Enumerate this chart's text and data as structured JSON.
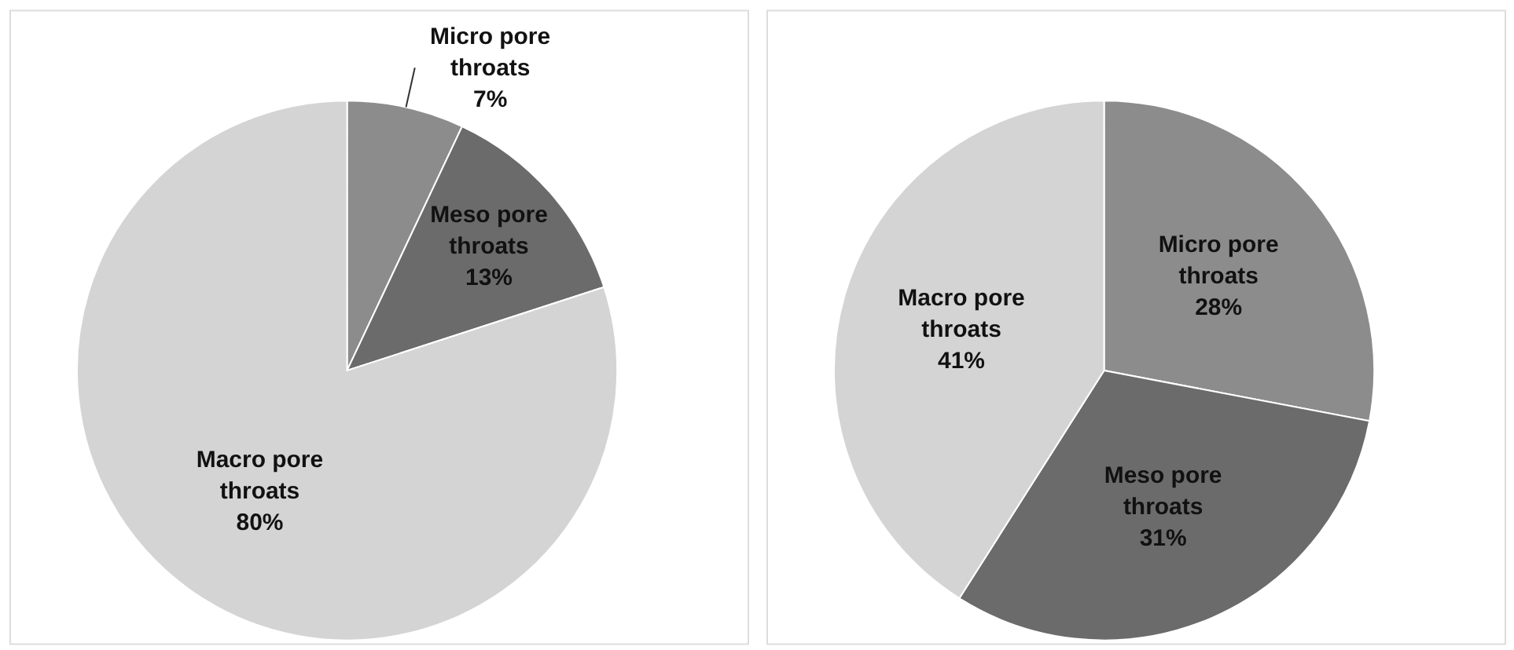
{
  "chart_data": [
    {
      "type": "pie",
      "categories": [
        "Micro pore throats",
        "Meso pore throats",
        "Macro pore throats"
      ],
      "values": [
        7,
        13,
        80
      ],
      "colors": [
        "#8c8c8c",
        "#6b6b6b",
        "#d4d4d4"
      ],
      "value_labels": [
        "7%",
        "13%",
        "80%"
      ]
    },
    {
      "type": "pie",
      "categories": [
        "Micro pore throats",
        "Meso pore throats",
        "Macro pore throats"
      ],
      "values": [
        28,
        31,
        41
      ],
      "colors": [
        "#898989",
        "#6b6b6b",
        "#d4d4d4"
      ],
      "value_labels": [
        "28%",
        "31%",
        "41%"
      ]
    }
  ]
}
